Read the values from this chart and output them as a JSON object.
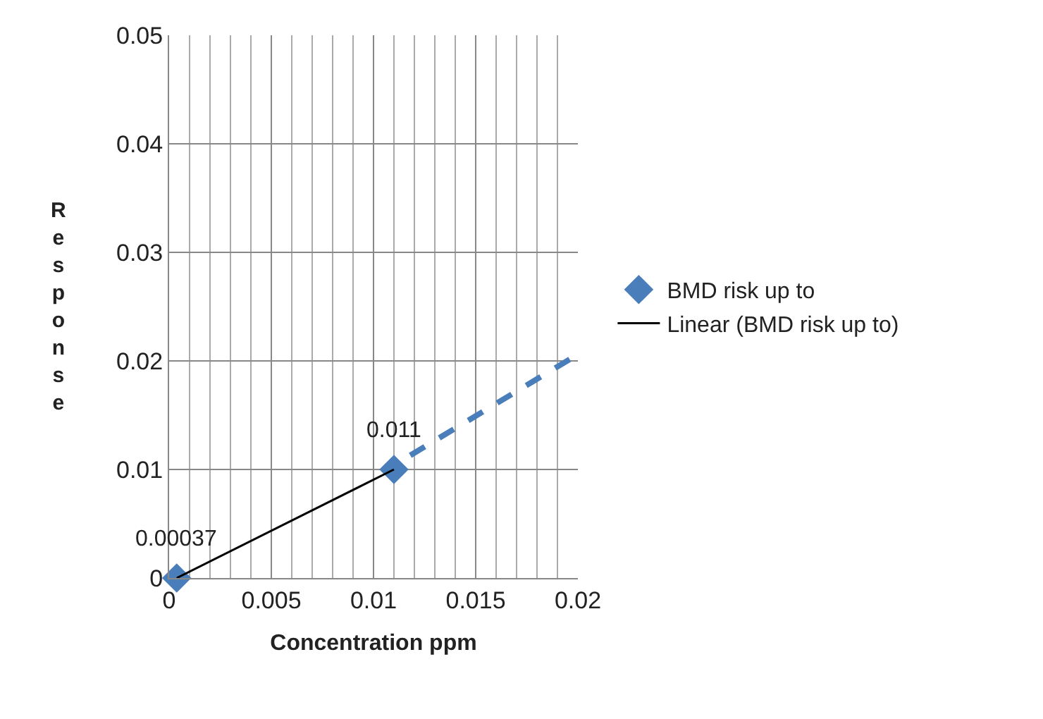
{
  "chart_data": {
    "type": "scatter",
    "xlabel": "Concentration ppm",
    "ylabel": "Response",
    "series": [
      {
        "name": "BMD risk up to",
        "color": "#4a7ebb",
        "marker": "diamond",
        "x": [
          0.00037,
          0.011
        ],
        "values": [
          0,
          0.01
        ]
      },
      {
        "name": "Linear (BMD risk up to)",
        "type": "line",
        "color": "#000000",
        "line_style": "solid",
        "x": [
          0.00037,
          0.011
        ],
        "values": [
          0,
          0.01
        ]
      },
      {
        "type": "line",
        "color": "#4a7ebb",
        "line_style": "dashed",
        "x": [
          0.0118,
          0.02
        ],
        "values": [
          0.0113,
          0.0206
        ]
      }
    ],
    "annotations": [
      {
        "text": "0.00037",
        "x": 0.00037,
        "y": 0
      },
      {
        "text": "0.011",
        "x": 0.011,
        "y": 0.01
      }
    ],
    "xlim": [
      0,
      0.02
    ],
    "xticks": [
      0,
      0.005,
      0.01,
      0.015,
      0.02
    ],
    "ylim": [
      0,
      0.05
    ],
    "yticks": [
      0,
      0.01,
      0.02,
      0.03,
      0.04,
      0.05
    ],
    "grid": true,
    "legend": "right"
  }
}
